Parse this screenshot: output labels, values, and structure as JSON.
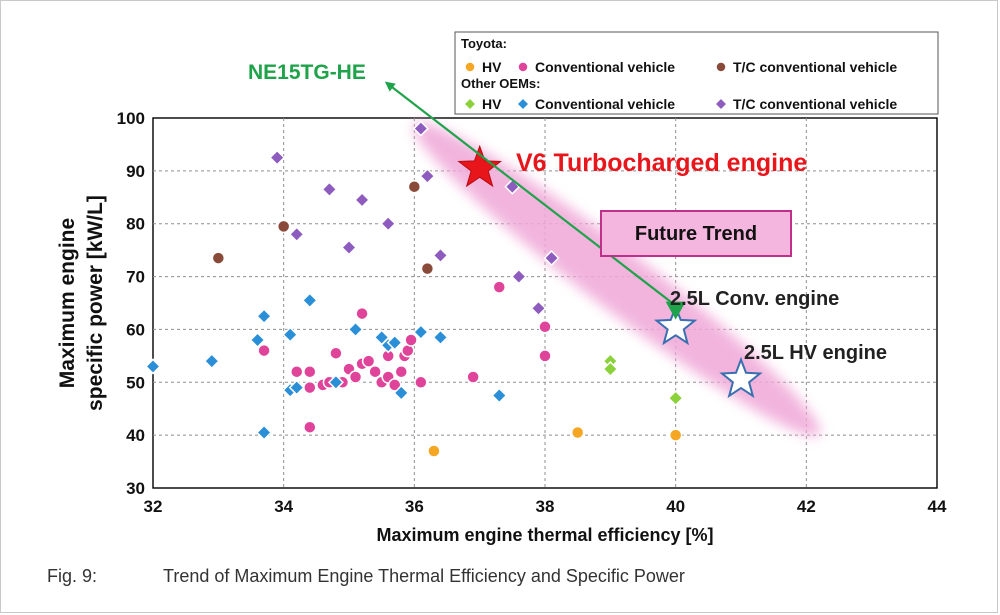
{
  "chart_data": {
    "type": "scatter",
    "xlabel": "Maximum engine thermal efficiency [%]",
    "ylabel_line1": "Maximum engine",
    "ylabel_line2": "specific power  [kW/L]",
    "xlim": [
      32,
      44
    ],
    "ylim": [
      30,
      100
    ],
    "xticks": [
      32,
      34,
      36,
      38,
      40,
      42,
      44
    ],
    "yticks": [
      30,
      40,
      50,
      60,
      70,
      80,
      90,
      100
    ],
    "grid": true,
    "legend": {
      "position": "top-right",
      "group1_title": "Toyota:",
      "group2_title": "Other OEMs:",
      "entries": {
        "toyota_hv": "HV",
        "toyota_conv": "Conventional vehicle",
        "toyota_tc": "T/C conventional vehicle",
        "other_hv": "HV",
        "other_conv": "Conventional vehicle",
        "other_tc": "T/C conventional vehicle"
      }
    },
    "series": [
      {
        "key": "toyota_hv",
        "shape": "circle",
        "color": "#f5a623",
        "points": [
          [
            36.3,
            37
          ],
          [
            38.5,
            40.5
          ],
          [
            40,
            40
          ]
        ]
      },
      {
        "key": "toyota_conv",
        "shape": "circle",
        "color": "#e0449a",
        "points": [
          [
            33.7,
            56
          ],
          [
            34.2,
            52
          ],
          [
            34.4,
            52
          ],
          [
            34.6,
            49.5
          ],
          [
            34.7,
            50
          ],
          [
            34.8,
            55.5
          ],
          [
            34.9,
            50
          ],
          [
            35,
            52.5
          ],
          [
            35.1,
            51
          ],
          [
            35.2,
            53.5
          ],
          [
            35.2,
            63
          ],
          [
            35.3,
            54
          ],
          [
            35.4,
            52
          ],
          [
            35.5,
            50
          ],
          [
            35.6,
            55
          ],
          [
            35.6,
            51
          ],
          [
            35.7,
            49.5
          ],
          [
            35.8,
            52
          ],
          [
            35.85,
            55
          ],
          [
            35.9,
            56
          ],
          [
            35.95,
            58
          ],
          [
            36.1,
            50
          ],
          [
            34.4,
            49
          ],
          [
            34.4,
            41.5
          ],
          [
            36.9,
            51
          ],
          [
            37.3,
            68
          ],
          [
            38,
            60.5
          ],
          [
            38,
            55
          ]
        ]
      },
      {
        "key": "toyota_tc",
        "shape": "circle",
        "color": "#8a4a3a",
        "points": [
          [
            33,
            73.5
          ],
          [
            34,
            79.5
          ],
          [
            36,
            87
          ],
          [
            36.2,
            71.5
          ]
        ]
      },
      {
        "key": "other_hv",
        "shape": "diamond",
        "color": "#8bd13a",
        "points": [
          [
            39,
            54
          ],
          [
            39,
            52.5
          ],
          [
            40,
            47
          ]
        ]
      },
      {
        "key": "other_conv",
        "shape": "diamond",
        "color": "#2b8fd8",
        "points": [
          [
            32,
            53
          ],
          [
            32.9,
            54
          ],
          [
            33.6,
            58
          ],
          [
            33.7,
            62.5
          ],
          [
            33.7,
            40.5
          ],
          [
            34.1,
            59
          ],
          [
            34.1,
            48.5
          ],
          [
            34.2,
            49
          ],
          [
            34.4,
            65.5
          ],
          [
            34.8,
            50
          ],
          [
            35.1,
            60
          ],
          [
            35.5,
            58.5
          ],
          [
            35.6,
            57
          ],
          [
            35.7,
            57.5
          ],
          [
            35.8,
            48
          ],
          [
            36.1,
            59.5
          ],
          [
            36.4,
            58.5
          ],
          [
            37.3,
            47.5
          ]
        ]
      },
      {
        "key": "other_tc",
        "shape": "diamond",
        "color": "#8e5bbf",
        "points": [
          [
            33.9,
            92.5
          ],
          [
            34.2,
            78
          ],
          [
            34.7,
            86.5
          ],
          [
            35,
            75.5
          ],
          [
            35.2,
            84.5
          ],
          [
            35.6,
            80
          ],
          [
            36.1,
            98
          ],
          [
            36.2,
            89
          ],
          [
            36.4,
            74
          ],
          [
            37.5,
            87
          ],
          [
            37.6,
            70
          ],
          [
            37.9,
            64
          ],
          [
            38.1,
            73.5
          ]
        ]
      }
    ],
    "annotations": {
      "v6": {
        "label": "V6 Turbocharged engine",
        "x": 37,
        "y": 90.5
      },
      "conv25": {
        "label": "2.5L Conv. engine",
        "x": 40,
        "y": 60.5
      },
      "hv25": {
        "label": "2.5L HV engine",
        "x": 41,
        "y": 50.5
      },
      "future_trend": "Future Trend",
      "ne15": {
        "label": "NE15TG-HE",
        "from": [
          40,
          64.5
        ],
        "to": [
          36.5,
          101.5
        ]
      }
    }
  },
  "caption": {
    "fig_label": "Fig. 9:",
    "text": "Trend of Maximum Engine Thermal Efficiency and Specific Power"
  },
  "colors": {
    "frame": "#c9c9c9",
    "grid": "#8f8f8f",
    "trend_band": "#f0a8d8",
    "v6_star": "#e8151b",
    "v6_text": "#e8151b",
    "arrow": "#1fa34a",
    "future_box_fill": "#f4b5de",
    "future_box_border": "#c0308a",
    "outline_star": "#3a6fb0"
  }
}
